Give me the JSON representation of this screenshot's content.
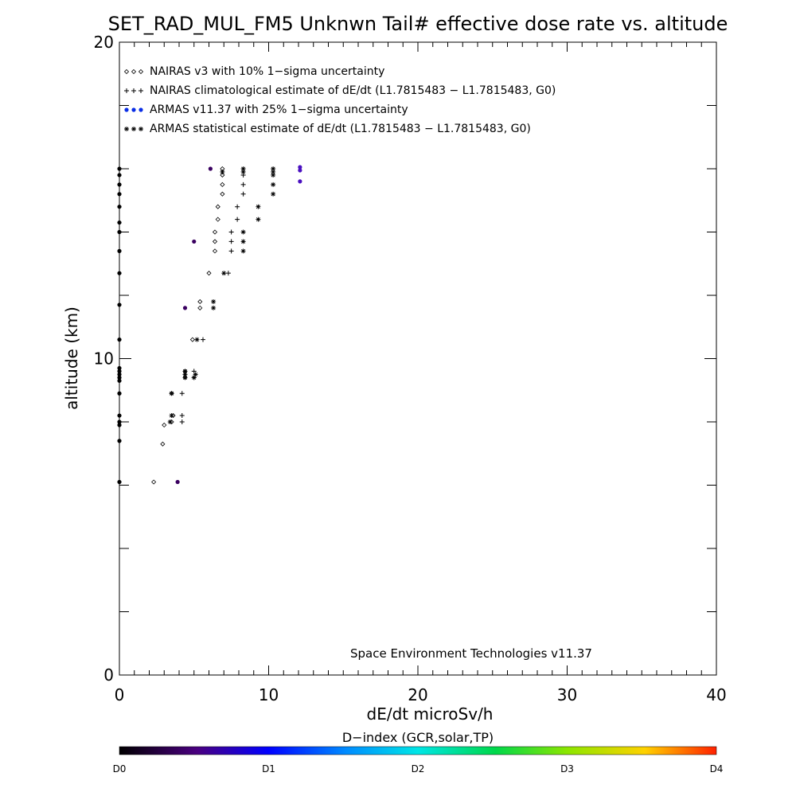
{
  "chart_data": {
    "type": "scatter",
    "title": "SET_RAD_MUL_FM5 Unknwn Tail#  effective dose rate vs. altitude",
    "xlabel": "dE/dt microSv/h",
    "ylabel": "altitude (km)",
    "xlim": [
      0,
      40
    ],
    "ylim": [
      0,
      20
    ],
    "x_ticks": [
      "0",
      "10",
      "20",
      "30",
      "40"
    ],
    "y_ticks": [
      "0",
      "10",
      "20"
    ],
    "grid": false,
    "legend_placement": "top-left",
    "legend": [
      {
        "symbol": "◇◇◇",
        "text": "NAIRAS v3 with 10% 1−sigma uncertainty",
        "series": "nairas"
      },
      {
        "symbol": "+++",
        "text": "NAIRAS climatological estimate of dE/dt (L1.7815483 − L1.7815483, G0)",
        "series": "nairas_clim"
      },
      {
        "symbol": "●●●",
        "text": "ARMAS v11.37 with 25% 1−sigma uncertainty",
        "series": "armas"
      },
      {
        "symbol": "***",
        "text": "ARMAS statistical estimate of dE/dt (L1.7815483 − L1.7815483, G0)",
        "series": "armas_stat"
      }
    ],
    "annotation": "Space Environment Technologies v11.37",
    "colorbar": {
      "title": "D−index (GCR,solar,TP)",
      "labels": [
        {
          "text": "D0",
          "value": 0
        },
        {
          "text": "D1",
          "value": 1
        },
        {
          "text": "D2",
          "value": 2
        },
        {
          "text": "D3",
          "value": 3
        },
        {
          "text": "D4",
          "value": 4
        }
      ]
    },
    "series": [
      {
        "id": "nairas",
        "name": "NAIRAS v3 with 10% 1−sigma uncertainty",
        "marker": "diamond",
        "color": "#000000",
        "points": [
          [
            2.3,
            6.1
          ],
          [
            2.9,
            7.3
          ],
          [
            3.0,
            7.9
          ],
          [
            3.5,
            8.0
          ],
          [
            3.6,
            8.2
          ],
          [
            3.5,
            8.9
          ],
          [
            4.4,
            9.6
          ],
          [
            4.4,
            9.4
          ],
          [
            4.9,
            10.6
          ],
          [
            5.4,
            11.6
          ],
          [
            5.4,
            11.8
          ],
          [
            6.0,
            12.7
          ],
          [
            6.4,
            13.4
          ],
          [
            6.4,
            13.7
          ],
          [
            6.4,
            14.0
          ],
          [
            6.6,
            14.4
          ],
          [
            6.6,
            14.8
          ],
          [
            6.9,
            15.2
          ],
          [
            6.9,
            15.5
          ],
          [
            6.9,
            15.8
          ],
          [
            6.9,
            16.0
          ]
        ]
      },
      {
        "id": "nairas_clim",
        "name": "NAIRAS climatological estimate of dE/dt (L1.7815483 − L1.7815483, G0)",
        "marker": "plus",
        "color": "#000000",
        "points": [
          [
            4.2,
            8.0
          ],
          [
            4.2,
            8.2
          ],
          [
            4.2,
            8.9
          ],
          [
            5.0,
            9.4
          ],
          [
            5.0,
            9.6
          ],
          [
            5.6,
            10.6
          ],
          [
            7.3,
            12.7
          ],
          [
            7.5,
            13.4
          ],
          [
            7.5,
            13.7
          ],
          [
            7.5,
            14.0
          ],
          [
            7.9,
            14.4
          ],
          [
            7.9,
            14.8
          ],
          [
            8.3,
            15.2
          ],
          [
            8.3,
            15.5
          ],
          [
            8.3,
            15.8
          ]
        ]
      },
      {
        "id": "armas_stat",
        "name": "ARMAS statistical estimate of dE/dt (L1.7815483 − L1.7815483, G0)",
        "marker": "asterisk",
        "color": "#000000",
        "points": [
          [
            3.4,
            8.0
          ],
          [
            3.5,
            8.2
          ],
          [
            3.5,
            8.9
          ],
          [
            4.4,
            9.4
          ],
          [
            4.4,
            9.5
          ],
          [
            4.4,
            9.6
          ],
          [
            5.0,
            9.4
          ],
          [
            5.1,
            9.5
          ],
          [
            5.2,
            10.6
          ],
          [
            6.3,
            11.6
          ],
          [
            6.3,
            11.8
          ],
          [
            7.0,
            12.7
          ],
          [
            8.3,
            13.4
          ],
          [
            8.3,
            13.7
          ],
          [
            8.3,
            14.0
          ],
          [
            9.3,
            14.4
          ],
          [
            9.3,
            14.8
          ],
          [
            10.3,
            15.2
          ],
          [
            10.3,
            15.5
          ],
          [
            10.3,
            15.8
          ],
          [
            10.3,
            15.9
          ],
          [
            10.3,
            16.0
          ],
          [
            8.3,
            15.9
          ],
          [
            8.3,
            16.0
          ],
          [
            6.9,
            15.9
          ]
        ]
      },
      {
        "id": "armas",
        "name": "ARMAS v11.37 with 25% 1−sigma uncertainty",
        "marker": "filled-circle",
        "color": "#3a0070",
        "points": [
          [
            0.0,
            6.1
          ],
          [
            0.0,
            7.4
          ],
          [
            0.0,
            7.9
          ],
          [
            0.0,
            8.0
          ],
          [
            0.0,
            8.2
          ],
          [
            0.0,
            8.9
          ],
          [
            0.0,
            9.3
          ],
          [
            0.0,
            9.4
          ],
          [
            0.0,
            9.5
          ],
          [
            0.0,
            9.6
          ],
          [
            0.0,
            9.7
          ],
          [
            0.0,
            10.6
          ],
          [
            0.0,
            11.7
          ],
          [
            0.0,
            12.7
          ],
          [
            0.0,
            13.4
          ],
          [
            0.0,
            14.0
          ],
          [
            0.0,
            14.3
          ],
          [
            0.0,
            14.8
          ],
          [
            0.0,
            15.2
          ],
          [
            0.0,
            15.5
          ],
          [
            0.0,
            15.8
          ],
          [
            0.0,
            16.0
          ],
          [
            3.9,
            6.1
          ],
          [
            4.4,
            11.6
          ],
          [
            5.0,
            13.7
          ],
          [
            6.1,
            16.0
          ],
          [
            12.1,
            15.6
          ],
          [
            12.1,
            15.95
          ],
          [
            12.1,
            16.05
          ]
        ]
      }
    ]
  }
}
